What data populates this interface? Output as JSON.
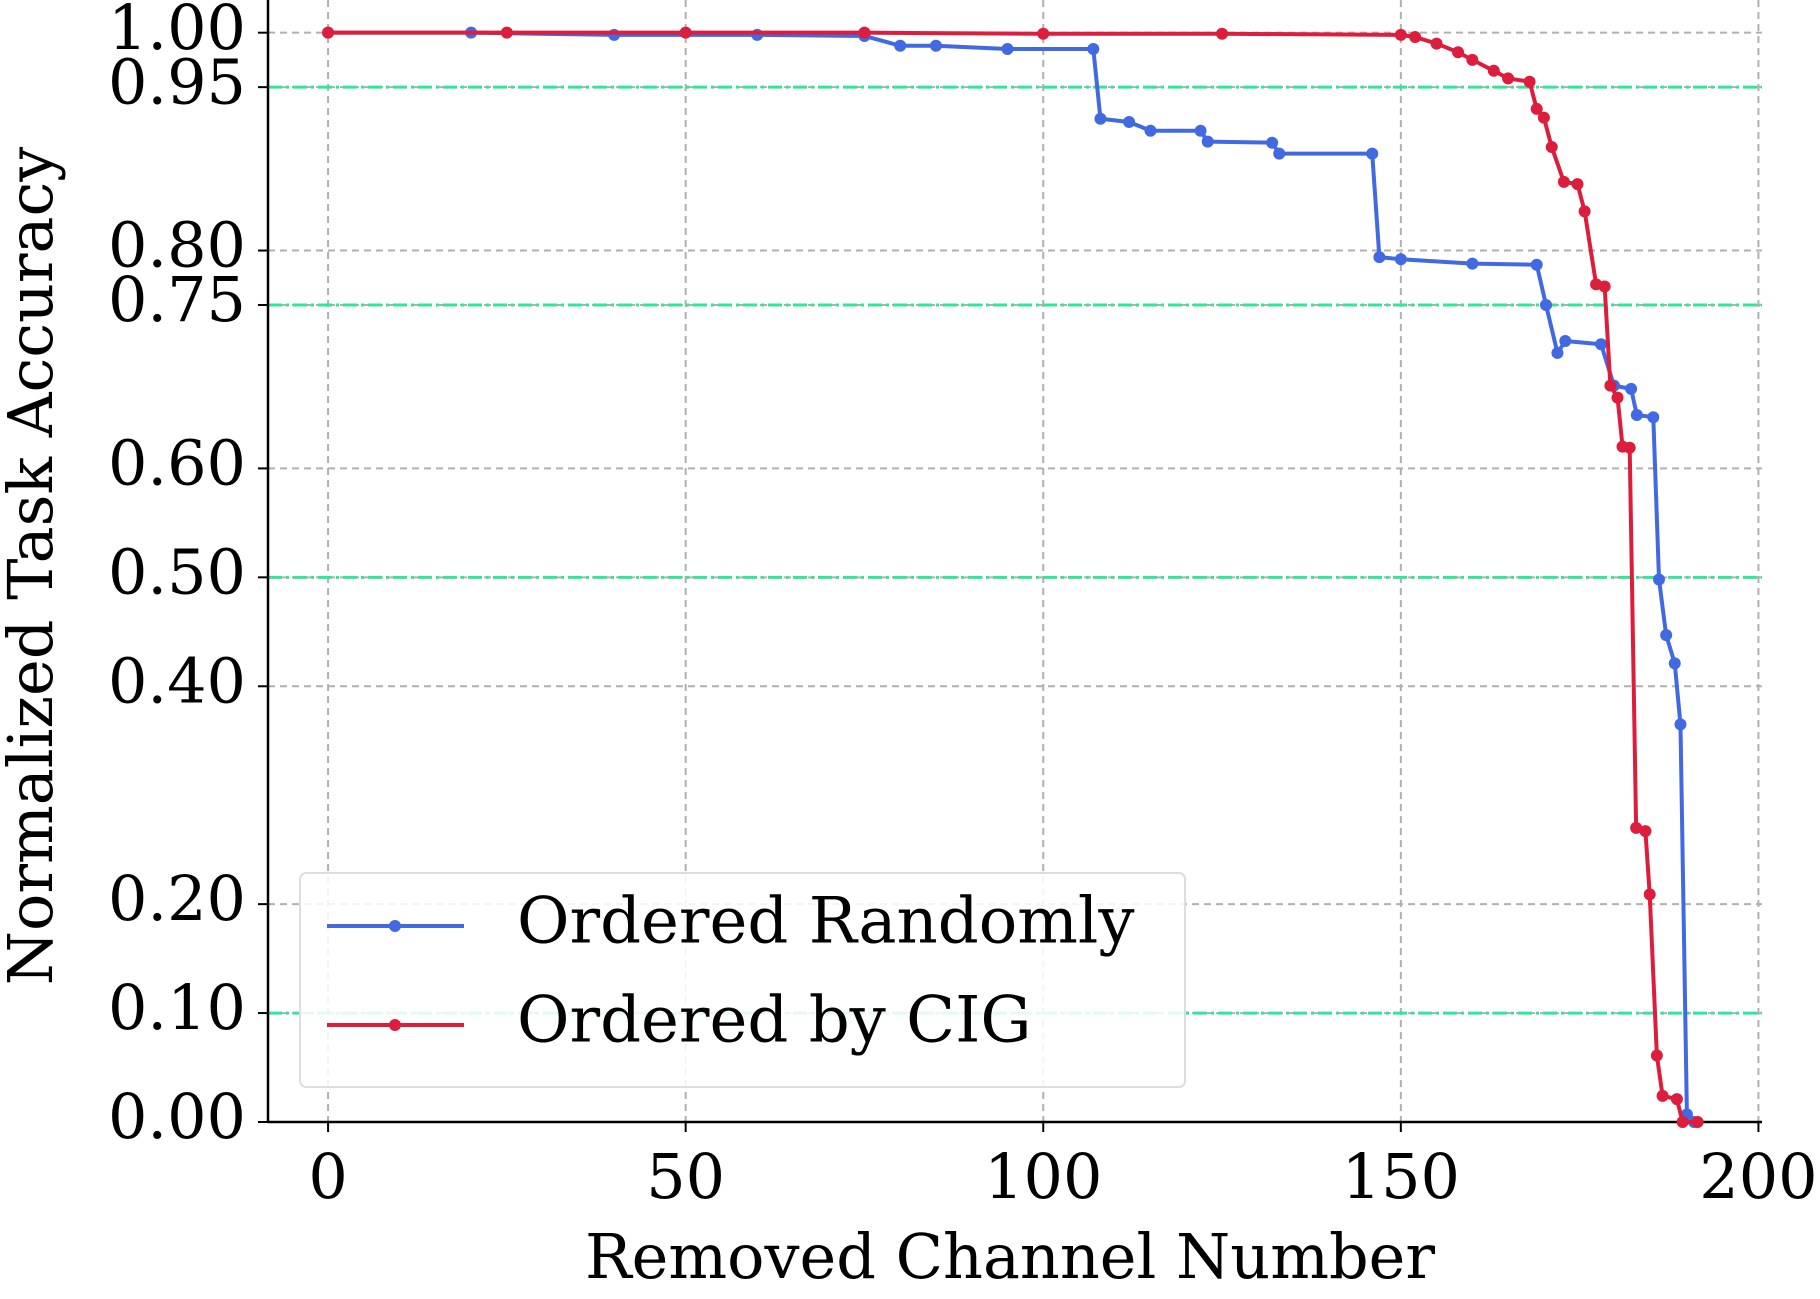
{
  "chart_data": {
    "type": "line",
    "x_label": "Removed Channel Number",
    "y_label": "Normalized Task Accuracy",
    "xlim": [
      -8.4,
      200.5
    ],
    "ylim": [
      0,
      1.03
    ],
    "xticks": [
      0,
      50,
      100,
      150,
      200
    ],
    "yticks": [
      {
        "value": 0,
        "label": "0.00"
      },
      {
        "value": 0.1,
        "label": "0.10"
      },
      {
        "value": 0.2,
        "label": "0.20"
      },
      {
        "value": 0.4,
        "label": "0.40"
      },
      {
        "value": 0.5,
        "label": "0.50"
      },
      {
        "value": 0.6,
        "label": "0.60"
      },
      {
        "value": 0.75,
        "label": "0.75"
      },
      {
        "value": 0.8,
        "label": "0.80"
      },
      {
        "value": 0.95,
        "label": "0.95"
      },
      {
        "value": 1.0,
        "label": "1.00"
      }
    ],
    "grid": true,
    "reference_lines": {
      "values": [
        0.95,
        0.75,
        0.5,
        0.1
      ],
      "color": "#2ee89a"
    },
    "legend": "lower left",
    "series": [
      {
        "name": "Ordered Randomly",
        "color": "#4169e1",
        "x": [
          0,
          20,
          40,
          60,
          75,
          80,
          85,
          95,
          107,
          108,
          112,
          115,
          122,
          123,
          132,
          133,
          146,
          147,
          150,
          160,
          169,
          170.3,
          171.9,
          173,
          178,
          179.8,
          182.2,
          183,
          185.3,
          186.1,
          187.1,
          188.3,
          189.1,
          190,
          191
        ],
        "values": [
          1.0,
          1.0,
          0.998,
          0.998,
          0.997,
          0.988,
          0.988,
          0.985,
          0.985,
          0.921,
          0.918,
          0.91,
          0.91,
          0.9,
          0.899,
          0.889,
          0.889,
          0.794,
          0.792,
          0.788,
          0.787,
          0.75,
          0.706,
          0.717,
          0.714,
          0.676,
          0.673,
          0.649,
          0.647,
          0.498,
          0.447,
          0.421,
          0.365,
          0.007,
          0.0
        ]
      },
      {
        "name": "Ordered by CIG",
        "color": "#dc1e3c",
        "x": [
          0,
          25,
          50,
          75,
          100,
          125,
          150,
          152,
          155,
          158,
          160,
          163,
          165,
          168,
          169,
          170,
          171.1,
          172.8,
          174.7,
          175.7,
          177.3,
          178.5,
          179.3,
          180.3,
          181,
          182,
          182.9,
          184.2,
          184.8,
          185.8,
          186.6,
          188.6,
          189.4,
          191.5
        ],
        "values": [
          1.0,
          1.0,
          1.0,
          1.0,
          0.999,
          0.999,
          0.998,
          0.996,
          0.99,
          0.982,
          0.975,
          0.965,
          0.958,
          0.955,
          0.93,
          0.922,
          0.895,
          0.863,
          0.861,
          0.836,
          0.769,
          0.767,
          0.676,
          0.665,
          0.62,
          0.619,
          0.27,
          0.267,
          0.209,
          0.061,
          0.024,
          0.021,
          0.0,
          0.0
        ]
      }
    ]
  }
}
